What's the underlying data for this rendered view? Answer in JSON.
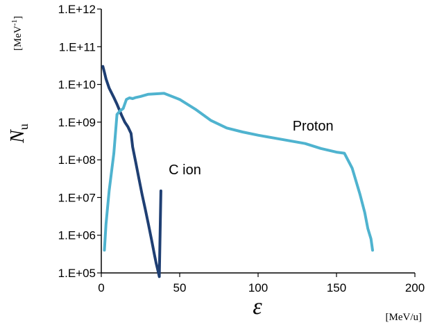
{
  "chart_data": {
    "type": "line",
    "title": "",
    "xlabel": "ε",
    "xunit": "[MeV/u]",
    "ylabel": "N",
    "ylabel_subscript": "u",
    "yunit_base": "[MeV",
    "yunit_exp": "-1",
    "yunit_close": "]",
    "xscale": "linear",
    "yscale": "log",
    "xlim": [
      0,
      200
    ],
    "ylim": [
      100000,
      1000000000000
    ],
    "grid": false,
    "legend": "none",
    "x_ticks": [
      "0",
      "50",
      "100",
      "150",
      "200"
    ],
    "y_ticks": [
      "1.E+05",
      "1.E+06",
      "1.E+07",
      "1.E+08",
      "1.E+09",
      "1.E+10",
      "1.E+11",
      "1.E+12"
    ],
    "series": [
      {
        "name": "C ion",
        "color": "#1f3f73",
        "x": [
          1,
          2,
          3,
          5,
          8,
          10,
          13,
          15,
          17,
          19,
          20,
          22,
          24,
          26,
          28,
          30,
          32,
          34,
          35,
          36,
          37,
          38
        ],
        "y": [
          30000000000,
          21000000000,
          14000000000,
          8000000000,
          4500000000,
          3000000000,
          1500000000,
          1000000000,
          750000000,
          500000000,
          220000000,
          85000000,
          32000000,
          12000000,
          5000000,
          2000000,
          780000,
          290000,
          180000,
          120000,
          80000,
          15000000
        ]
      },
      {
        "name": "Proton",
        "color": "#4fb3cf",
        "x": [
          2,
          3,
          5,
          8,
          10,
          12,
          14,
          16,
          18,
          20,
          22,
          25,
          30,
          40,
          50,
          60,
          70,
          80,
          90,
          100,
          110,
          120,
          130,
          140,
          150,
          155,
          160,
          165,
          168,
          170,
          172,
          173
        ],
        "y": [
          400000,
          2000000,
          15000000,
          150000000,
          1600000000,
          2000000000,
          2300000000,
          4000000000,
          4400000000,
          4200000000,
          4500000000,
          4800000000,
          5500000000,
          5800000000,
          4000000000,
          2200000000,
          1100000000,
          700000000,
          550000000,
          450000000,
          380000000,
          320000000,
          270000000,
          200000000,
          160000000,
          150000000,
          60000000,
          12000000,
          4000000,
          1500000,
          800000,
          400000
        ]
      }
    ],
    "annotations": [
      {
        "text": "C ion",
        "x": 43,
        "y": 55000000
      },
      {
        "text": "Proton",
        "x": 122,
        "y": 800000000
      }
    ]
  }
}
